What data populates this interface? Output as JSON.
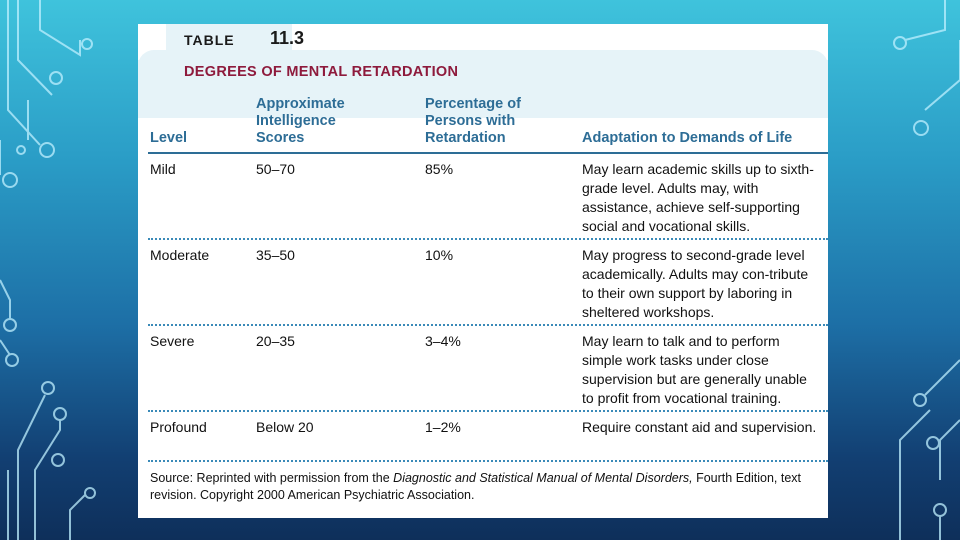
{
  "table": {
    "label_word": "TABLE",
    "label_number": "11.3",
    "title": "DEGREES OF MENTAL RETARDATION",
    "columns": {
      "level": "Level",
      "iq": "Approximate Intelligence Scores",
      "percent": "Percentage of Persons with Retardation",
      "adaptation": "Adaptation to Demands of Life"
    },
    "rows": [
      {
        "level": "Mild",
        "iq": "50–70",
        "percent": "85%",
        "adaptation": "May learn academic skills up to sixth-grade level. Adults may, with assistance, achieve self-supporting social and vocational skills."
      },
      {
        "level": "Moderate",
        "iq": "35–50",
        "percent": "10%",
        "adaptation": "May progress to second-grade level academically. Adults may con-tribute to their own support by laboring in sheltered workshops."
      },
      {
        "level": "Severe",
        "iq": "20–35",
        "percent": "3–4%",
        "adaptation": "May learn to talk and to perform simple work tasks under close supervision but are generally unable to profit from vocational training."
      },
      {
        "level": "Profound",
        "iq": "Below 20",
        "percent": "1–2%",
        "adaptation": "Require constant aid and supervision."
      }
    ],
    "source": {
      "prefix": "Source: Reprinted with permission from the ",
      "title": "Diagnostic and Statistical Manual of Mental Disorders,",
      "suffix": " Fourth Edition, text revision. Copyright 2000 American Psychiatric Association."
    }
  },
  "colors": {
    "title": "#8e1a3c",
    "header": "#2d6d96",
    "panel": "#e6f3f8"
  }
}
